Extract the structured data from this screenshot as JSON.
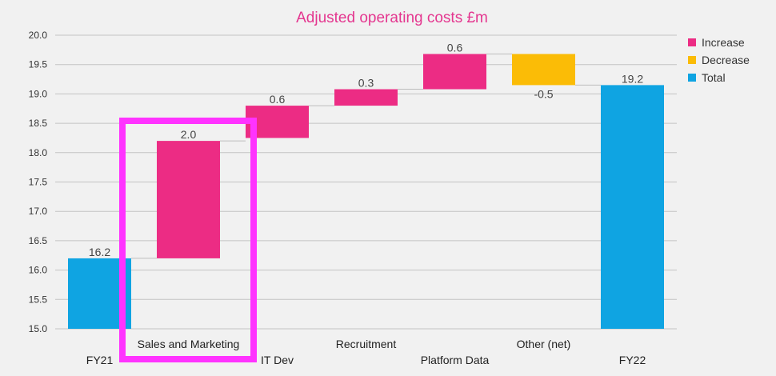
{
  "chart_data": {
    "type": "bar",
    "subtype": "waterfall",
    "title": "Adjusted operating costs £m",
    "xlabel": "",
    "ylabel": "",
    "ylim": [
      15.0,
      20.0
    ],
    "ytick_labels": [
      "15.0",
      "15.5",
      "16.0",
      "16.5",
      "17.0",
      "17.5",
      "18.0",
      "18.5",
      "19.0",
      "19.5",
      "20.0"
    ],
    "grid": true,
    "legend_position": "top-right",
    "legend": [
      {
        "label": "Increase",
        "color": "#ec2c84"
      },
      {
        "label": "Decrease",
        "color": "#fbbc06"
      },
      {
        "label": "Total",
        "color": "#0fa4e2"
      }
    ],
    "categories": [
      "FY21",
      "Sales and Marketing",
      "IT Dev",
      "Recruitment",
      "Platform Data",
      "Other (net)",
      "FY22"
    ],
    "bars": [
      {
        "category": "FY21",
        "kind": "total",
        "start": 15.0,
        "end": 16.2,
        "label": "16.2"
      },
      {
        "category": "Sales and Marketing",
        "kind": "increase",
        "start": 16.2,
        "end": 18.2,
        "label": "2.0"
      },
      {
        "category": "IT Dev",
        "kind": "increase",
        "start": 18.25,
        "end": 18.8,
        "label": "0.6"
      },
      {
        "category": "Recruitment",
        "kind": "increase",
        "start": 18.8,
        "end": 19.08,
        "label": "0.3"
      },
      {
        "category": "Platform Data",
        "kind": "increase",
        "start": 19.08,
        "end": 19.68,
        "label": "0.6"
      },
      {
        "category": "Other (net)",
        "kind": "decrease",
        "start": 19.68,
        "end": 19.15,
        "label": "-0.5"
      },
      {
        "category": "FY22",
        "kind": "total",
        "start": 15.0,
        "end": 19.15,
        "label": "19.2"
      }
    ],
    "highlight": {
      "category": "Sales and Marketing",
      "color": "#ff33ff"
    }
  }
}
